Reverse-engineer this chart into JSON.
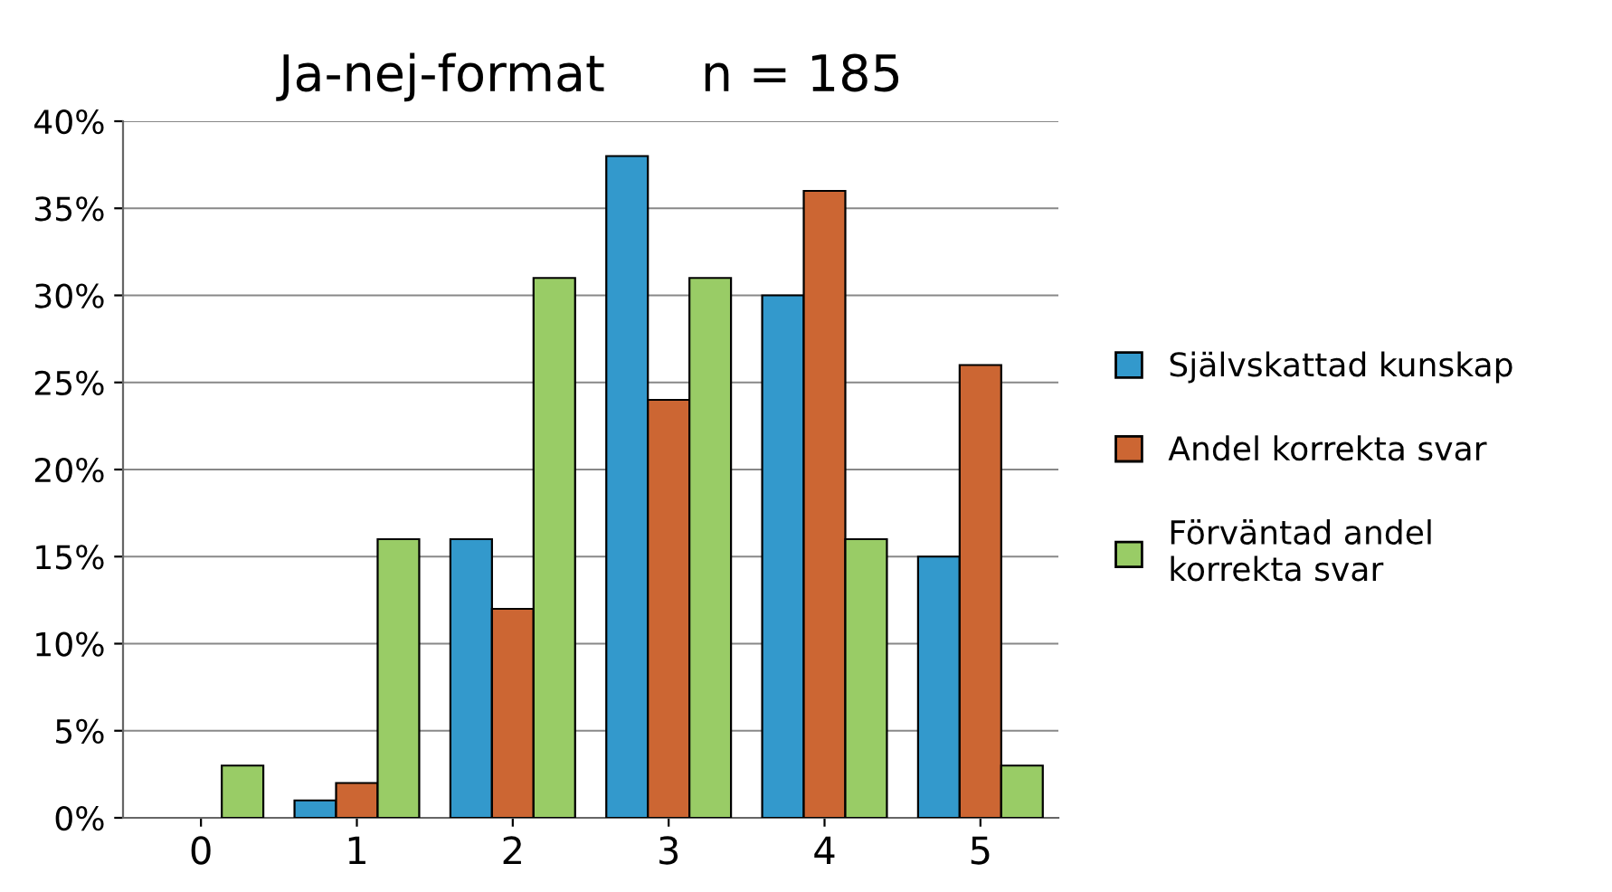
{
  "chart_data": {
    "type": "bar",
    "title": "Ja-nej-format      n = 185",
    "categories": [
      "0",
      "1",
      "2",
      "3",
      "4",
      "5"
    ],
    "series": [
      {
        "name": "Självskattad kunskap",
        "color": "#3399cc",
        "values": [
          0,
          1,
          16,
          38,
          30,
          15
        ]
      },
      {
        "name": "Andel korrekta svar",
        "color": "#cc6633",
        "values": [
          0,
          2,
          12,
          24,
          36,
          26
        ]
      },
      {
        "name": "Förväntad andel\nkorrekta svar",
        "color": "#99cc66",
        "values": [
          3,
          16,
          31,
          31,
          16,
          3
        ]
      }
    ],
    "ylim": [
      0,
      40
    ],
    "yticks": [
      {
        "value": 0,
        "label": "0%"
      },
      {
        "value": 5,
        "label": "5%"
      },
      {
        "value": 10,
        "label": "10%"
      },
      {
        "value": 15,
        "label": "15%"
      },
      {
        "value": 20,
        "label": "20%"
      },
      {
        "value": 25,
        "label": "25%"
      },
      {
        "value": 30,
        "label": "30%"
      },
      {
        "value": 35,
        "label": "35%"
      },
      {
        "value": 40,
        "label": "40%"
      }
    ],
    "grid": "y",
    "legend": "right"
  }
}
